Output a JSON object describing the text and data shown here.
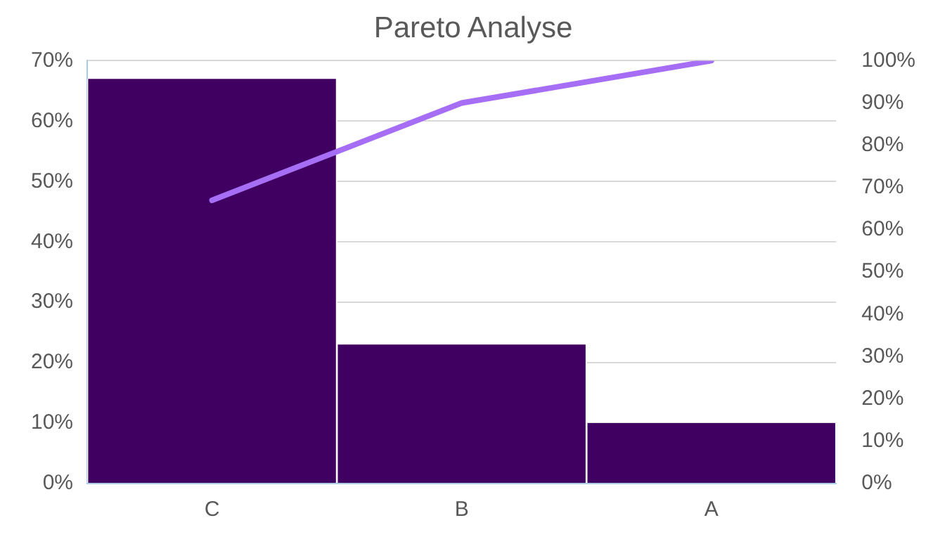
{
  "chart_data": {
    "type": "bar",
    "title": "Pareto Analyse",
    "categories": [
      "C",
      "B",
      "A"
    ],
    "series": [
      {
        "color": "#3f0061",
        "values": [
          67,
          23,
          10
        ]
      },
      {
        "type": "line",
        "axis": "y2",
        "color": "#a66ef5",
        "values": [
          67,
          90,
          100
        ],
        "marker": "none"
      }
    ],
    "ylim": [
      0,
      70
    ],
    "yticks": [
      {
        "value": 0,
        "label": "0%"
      },
      {
        "value": 10,
        "label": "10%"
      },
      {
        "value": 20,
        "label": "20%"
      },
      {
        "value": 30,
        "label": "30%"
      },
      {
        "value": 40,
        "label": "40%"
      },
      {
        "value": 50,
        "label": "50%"
      },
      {
        "value": 60,
        "label": "60%"
      },
      {
        "value": 70,
        "label": "70%"
      }
    ],
    "y2lim": [
      0,
      100
    ],
    "y2ticks": [
      {
        "value": 0,
        "label": "0%"
      },
      {
        "value": 10,
        "label": "10%"
      },
      {
        "value": 20,
        "label": "20%"
      },
      {
        "value": 30,
        "label": "30%"
      },
      {
        "value": 40,
        "label": "40%"
      },
      {
        "value": 50,
        "label": "50%"
      },
      {
        "value": 60,
        "label": "60%"
      },
      {
        "value": 70,
        "label": "70%"
      },
      {
        "value": 80,
        "label": "80%"
      },
      {
        "value": 90,
        "label": "90%"
      },
      {
        "value": 100,
        "label": "100%"
      }
    ],
    "grid": "y",
    "legend": false
  }
}
